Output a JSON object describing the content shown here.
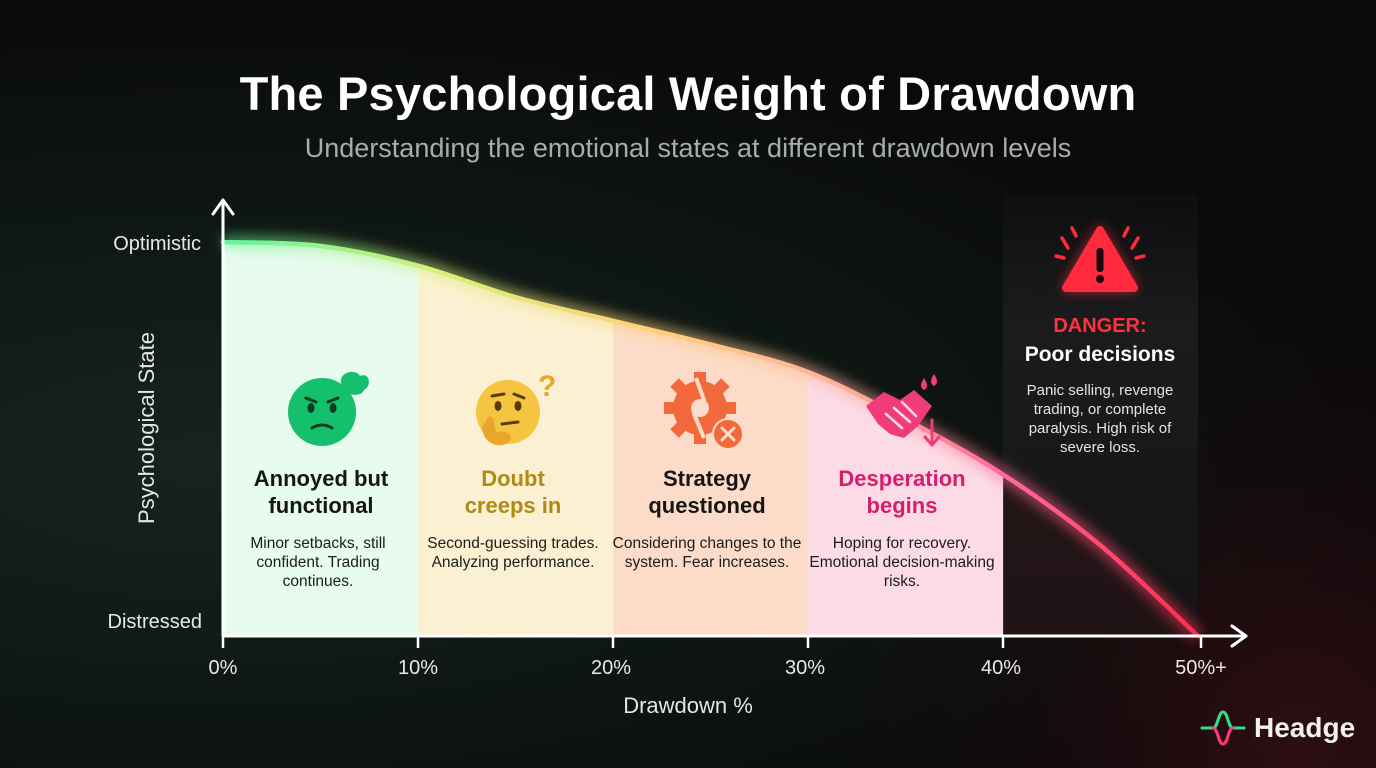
{
  "title": "The Psychological Weight of Drawdown",
  "subtitle": "Understanding the emotional states at different drawdown levels",
  "chart_data": {
    "type": "line",
    "xlabel": "Drawdown %",
    "ylabel": "Psychological State",
    "x_ticks": [
      "0%",
      "10%",
      "20%",
      "30%",
      "40%",
      "50%+"
    ],
    "y_ticks": [
      "Optimistic",
      "Distressed"
    ],
    "xlim": [
      0,
      50
    ],
    "ylim": [
      0,
      100
    ],
    "x": [
      0,
      5,
      10,
      15,
      20,
      25,
      30,
      35,
      40,
      45,
      50
    ],
    "y": [
      100,
      99,
      94,
      86,
      80,
      74,
      67,
      55,
      41,
      23,
      0
    ],
    "zones": [
      {
        "range": "0-10%",
        "heading": "Annoyed but functional",
        "heading_lines": [
          "Annoyed but",
          "functional"
        ],
        "description": "Minor setbacks, still confident. Trading continues.",
        "icon": "annoyed-face-icon",
        "color": "#14c06c",
        "heading_color": "#151515"
      },
      {
        "range": "10-20%",
        "heading": "Doubt creeps in",
        "heading_lines": [
          "Doubt",
          "creeps in"
        ],
        "description": "Second-guessing trades. Analyzing performance.",
        "icon": "thinking-face-icon",
        "color": "#f5c542",
        "heading_color": "#b08a14"
      },
      {
        "range": "20-30%",
        "heading": "Strategy questioned",
        "heading_lines": [
          "Strategy",
          "questioned"
        ],
        "description": "Considering changes to the system. Fear increases.",
        "icon": "broken-gear-icon",
        "color": "#f26a3c",
        "heading_color": "#151515"
      },
      {
        "range": "30-40%",
        "heading": "Desperation begins",
        "heading_lines": [
          "Desperation",
          "begins"
        ],
        "description": "Hoping for recovery. Emotional decision-making risks.",
        "icon": "sweaty-handshake-icon",
        "color": "#f03c7a",
        "heading_color": "#d81e6a"
      }
    ],
    "danger": {
      "range": "40-50%+",
      "label": "DANGER:",
      "heading": "Poor decisions",
      "description": "Panic selling, revenge trading, or complete paralysis. High risk of severe loss.",
      "icon": "warning-triangle-icon",
      "color": "#ff2a3c"
    }
  },
  "brand": {
    "name": "Headge",
    "icon": "headge-logo-icon"
  }
}
